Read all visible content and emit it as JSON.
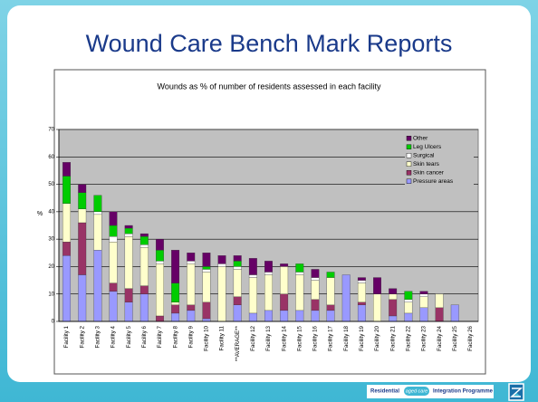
{
  "slide_title": "Wound Care Bench Mark Reports",
  "footer": {
    "left": "Residential",
    "badge": "aged care",
    "right": "Integration Programme"
  },
  "chart_data": {
    "type": "stacked_bar",
    "title": "Wounds as % of number of residents assessed in each facility",
    "y_label": "%",
    "categories": [
      "Facility 1",
      "Facility 2",
      "Facility 3",
      "Facility 4",
      "Facility 5",
      "Facility 6",
      "Facility 7",
      "Facility 8",
      "Facility 9",
      "Facility 10",
      "Facility 11",
      "**AVERAGE**",
      "Facility 12",
      "Facility 13",
      "Facility 14",
      "Facility 15",
      "Facility 16",
      "Facility 17",
      "Facility 18",
      "Facility 19",
      "Facility 20",
      "Facility 21",
      "Facility 22",
      "Facility 23",
      "Facility 24",
      "Facility 25",
      "Facility 26"
    ],
    "series": [
      {
        "name": "Pressure areas",
        "color": "#9999ff",
        "values": [
          24,
          17,
          26,
          11,
          7,
          10,
          0,
          3,
          4,
          1,
          0,
          6,
          3,
          4,
          4,
          4,
          4,
          4,
          17,
          6,
          0,
          2,
          3,
          5,
          0,
          6,
          0
        ]
      },
      {
        "name": "Skin cancer",
        "color": "#993366",
        "values": [
          5,
          19,
          0,
          3,
          5,
          3,
          2,
          3,
          2,
          6,
          0,
          3,
          0,
          0,
          6,
          0,
          4,
          2,
          0,
          1,
          0,
          6,
          0,
          0,
          5,
          0,
          0
        ]
      },
      {
        "name": "Skin tears",
        "color": "#ffffcc",
        "values": [
          14,
          5,
          13,
          15,
          19,
          14,
          19,
          1,
          15,
          11,
          20,
          10,
          13,
          13,
          10,
          13,
          7,
          10,
          0,
          7,
          10,
          2,
          4,
          4,
          5,
          0,
          0
        ]
      },
      {
        "name": "Surgical",
        "color": "#ffffff",
        "values": [
          0,
          0,
          1,
          2,
          1,
          1,
          1,
          0,
          1,
          1,
          1,
          1,
          1,
          1,
          0,
          1,
          1,
          0,
          0,
          1,
          0,
          0,
          1,
          1,
          0,
          0,
          0
        ]
      },
      {
        "name": "Leg Ulcers",
        "color": "#00cc00",
        "values": [
          10,
          6,
          6,
          4,
          2,
          3,
          4,
          7,
          0,
          1,
          0,
          2,
          0,
          0,
          0,
          3,
          0,
          2,
          0,
          0,
          0,
          0,
          3,
          0,
          0,
          0,
          0
        ]
      },
      {
        "name": "Other",
        "color": "#660066",
        "values": [
          5,
          3,
          0,
          5,
          1,
          1,
          4,
          12,
          3,
          5,
          3,
          2,
          6,
          4,
          1,
          0,
          3,
          0,
          0,
          1,
          6,
          2,
          0,
          1,
          0,
          0,
          0
        ]
      }
    ],
    "ylim": [
      0,
      70
    ],
    "yticks": [
      0,
      10,
      20,
      30,
      40,
      50,
      60,
      70
    ],
    "grid": true,
    "legend": "upper right"
  }
}
